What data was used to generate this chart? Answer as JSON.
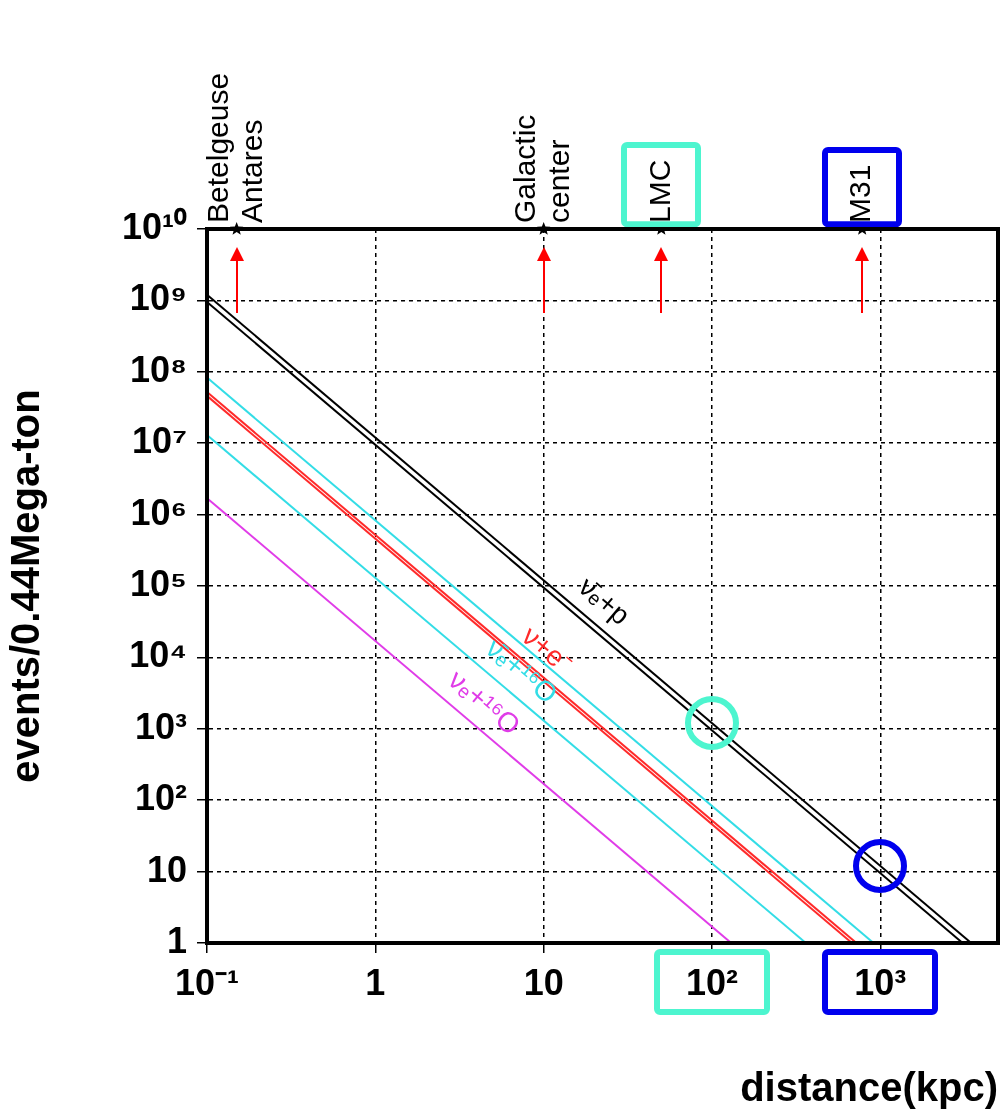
{
  "chart_data": {
    "type": "line",
    "xlabel": "distance(kpc)",
    "ylabel": "events/0.44Mega-ton",
    "xlim": [
      0.1,
      5000
    ],
    "ylim": [
      1,
      10000000000
    ],
    "xticks": [
      {
        "value": 0.1,
        "label": "10⁻¹"
      },
      1,
      10,
      {
        "value": 100,
        "label": "10²"
      },
      {
        "value": 1000,
        "label": "10³"
      }
    ],
    "yticks": [
      1,
      10,
      {
        "value": 100,
        "label": "10²"
      },
      {
        "value": 1000,
        "label": "10³"
      },
      {
        "value": 10000,
        "label": "10⁴"
      },
      {
        "value": 100000,
        "label": "10⁵"
      },
      {
        "value": 1000000,
        "label": "10⁶"
      },
      {
        "value": 10000000,
        "label": "10⁷"
      },
      {
        "value": 100000000,
        "label": "10⁸"
      },
      {
        "value": 1000000000,
        "label": "10⁹"
      },
      {
        "value": 10000000000,
        "label": "10¹⁰"
      }
    ],
    "log": "xy",
    "grid": true,
    "legend": false,
    "annotations": [
      {
        "text": "Betelgeuse\nAntares",
        "x": 0.15
      },
      {
        "text": "Galactic\ncenter",
        "x": 10
      },
      {
        "text": "LMC",
        "x": 50
      },
      {
        "text": "M31",
        "x": 780
      }
    ],
    "series": [
      {
        "name": "ν̄ₑ+p",
        "color": "#000000",
        "marker": "none",
        "x": [
          0.1,
          3464
        ],
        "values": [
          1200000000,
          1
        ]
      },
      {
        "color": "#000000",
        "marker": "none",
        "x": [
          0.1,
          3082
        ],
        "values": [
          950000000,
          1
        ]
      },
      {
        "color": "#33dde6",
        "marker": "none",
        "x": [
          0.1,
          911
        ],
        "values": [
          83000000,
          1
        ]
      },
      {
        "name": "ν+e⁻",
        "color": "#ff2a2a",
        "marker": "none",
        "x": [
          0.1,
          721
        ],
        "values": [
          52000000,
          1
        ]
      },
      {
        "color": "#ff2a2a",
        "marker": "none",
        "x": [
          0.1,
          678
        ],
        "values": [
          46000000,
          1
        ]
      },
      {
        "name": "ν̄ₑ+¹⁶O",
        "color": "#33dde6",
        "marker": "none",
        "x": [
          0.1,
          361
        ],
        "values": [
          13000000,
          1
        ]
      },
      {
        "name": "νₑ+¹⁶O",
        "color": "#e03ce8",
        "marker": "none",
        "x": [
          0.1,
          130
        ],
        "values": [
          1700000,
          1
        ]
      },
      {
        "type": "scatter",
        "color": "#000000",
        "marker": "star",
        "x": [
          0.15,
          10,
          50,
          780
        ],
        "values": [
          10000000000,
          10000000000,
          10000000000,
          10000000000
        ]
      }
    ]
  }
}
